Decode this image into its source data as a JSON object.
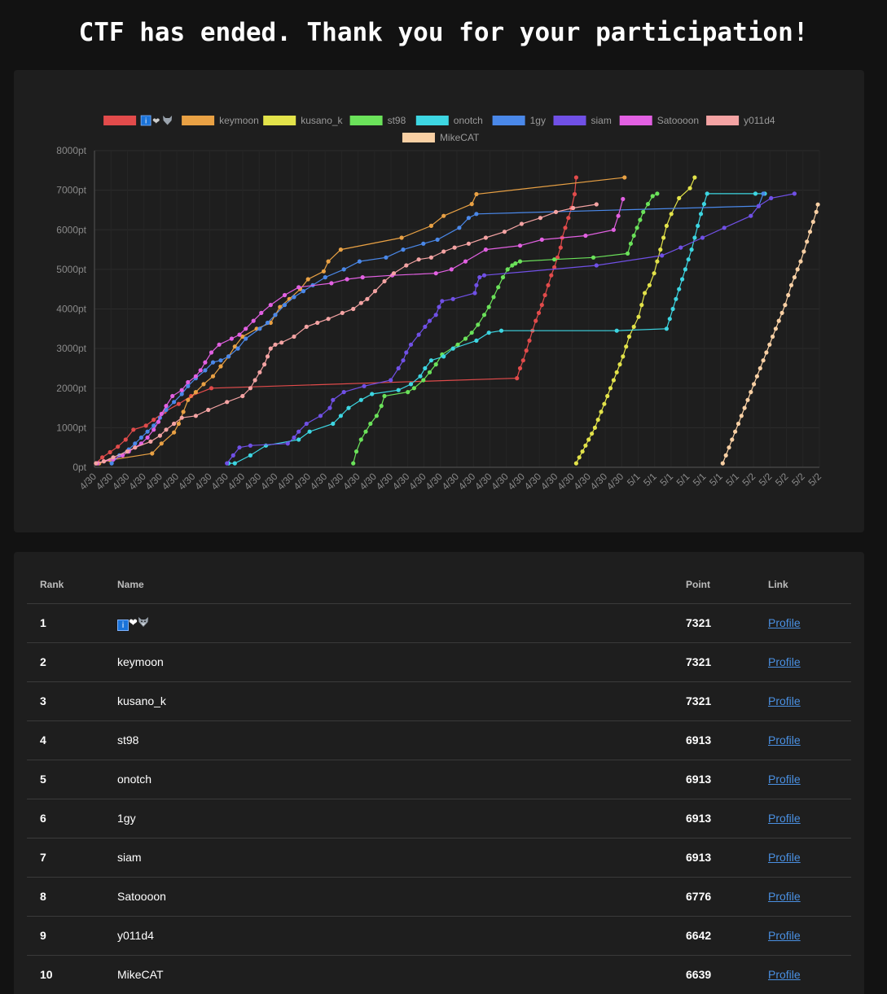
{
  "title": "CTF has ended. Thank you for your participation!",
  "colors": {
    "background": "#121212",
    "card": "#1e1e1e",
    "link": "#4a90e2"
  },
  "team_one": {
    "badge_letter": "i",
    "heart": "❤",
    "icons": [
      "info-badge-icon",
      "heart-icon",
      "wolf-icon"
    ]
  },
  "chart_data": {
    "type": "line",
    "title": "",
    "xlabel": "",
    "ylabel": "",
    "ylim": [
      0,
      8000
    ],
    "y_ticks": [
      "0pt",
      "1000pt",
      "2000pt",
      "3000pt",
      "4000pt",
      "5000pt",
      "6000pt",
      "7000pt",
      "8000pt"
    ],
    "x_ticks": [
      "4/30",
      "4/30",
      "4/30",
      "4/30",
      "4/30",
      "4/30",
      "4/30",
      "4/30",
      "4/30",
      "4/30",
      "4/30",
      "4/30",
      "4/30",
      "4/30",
      "4/30",
      "4/30",
      "4/30",
      "4/30",
      "4/30",
      "4/30",
      "4/30",
      "4/30",
      "4/30",
      "4/30",
      "4/30",
      "4/30",
      "4/30",
      "4/30",
      "4/30",
      "4/30",
      "4/30",
      "4/30",
      "4/30",
      "5/1",
      "5/1",
      "5/1",
      "5/1",
      "5/1",
      "5/1",
      "5/1",
      "5/2",
      "5/2",
      "5/2",
      "5/2",
      "5/2"
    ],
    "legend_position": "top",
    "grid": true,
    "x_domain": [
      0,
      45
    ],
    "series": [
      {
        "name": "🇮❤🐺",
        "legend_icons": true,
        "color": "#e24b4b",
        "x": [
          0.1,
          0.5,
          1.0,
          1.5,
          2.0,
          2.5,
          3.3,
          3.8,
          4.5,
          5.4,
          6.2,
          7.5,
          27.1,
          27.3,
          27.5,
          27.7,
          27.9,
          28.1,
          28.3,
          28.5,
          28.7,
          28.9,
          29.1,
          29.3,
          29.5,
          29.7,
          29.9,
          30.0,
          30.2,
          30.4,
          30.6,
          30.8,
          30.9
        ],
        "y": [
          100,
          250,
          380,
          520,
          700,
          950,
          1050,
          1200,
          1400,
          1600,
          1800,
          2000,
          2250,
          2500,
          2700,
          2950,
          3200,
          3450,
          3700,
          3900,
          4100,
          4350,
          4600,
          4850,
          5050,
          5300,
          5550,
          5800,
          6050,
          6300,
          6550,
          6900,
          7321
        ]
      },
      {
        "name": "keymoon",
        "color": "#e9a144",
        "x": [
          0.3,
          1.0,
          3.7,
          4.3,
          5.1,
          5.4,
          5.7,
          6.0,
          6.5,
          7.0,
          7.6,
          8.1,
          8.6,
          9.0,
          9.5,
          10.4,
          11.3,
          11.6,
          11.9,
          12.5,
          13.2,
          13.7,
          14.7,
          15.0,
          15.8,
          19.7,
          21.6,
          22.4,
          24.2,
          24.5,
          34.0
        ],
        "y": [
          100,
          180,
          350,
          600,
          880,
          1100,
          1400,
          1700,
          1900,
          2100,
          2300,
          2550,
          2800,
          3050,
          3300,
          3500,
          3650,
          3850,
          4050,
          4250,
          4500,
          4750,
          4950,
          5200,
          5500,
          5800,
          6100,
          6350,
          6650,
          6900,
          7321
        ]
      },
      {
        "name": "kusano_k",
        "color": "#e3e34a",
        "x": [
          30.9,
          31.1,
          31.3,
          31.5,
          31.7,
          31.9,
          32.1,
          32.3,
          32.5,
          32.7,
          32.9,
          33.1,
          33.3,
          33.5,
          33.7,
          33.9,
          34.1,
          34.3,
          34.6,
          34.9,
          35.1,
          35.3,
          35.6,
          35.9,
          36.1,
          36.3,
          36.5,
          36.7,
          37.0,
          37.5,
          38.2,
          38.5
        ],
        "y": [
          100,
          250,
          400,
          550,
          700,
          850,
          1000,
          1200,
          1400,
          1600,
          1800,
          2000,
          2200,
          2400,
          2600,
          2800,
          3050,
          3300,
          3550,
          3800,
          4100,
          4400,
          4600,
          4900,
          5200,
          5500,
          5800,
          6100,
          6400,
          6800,
          7050,
          7321
        ]
      },
      {
        "name": "st98",
        "color": "#6be25a",
        "x": [
          16.6,
          16.8,
          17.1,
          17.4,
          17.7,
          18.1,
          18.4,
          18.6,
          20.1,
          20.5,
          21.1,
          21.5,
          21.9,
          22.3,
          23.3,
          23.8,
          24.2,
          24.6,
          25.0,
          25.3,
          25.6,
          25.9,
          26.2,
          26.5,
          26.8,
          27.0,
          27.3,
          29.5,
          32.0,
          34.2,
          34.4,
          34.6,
          34.8,
          35.0,
          35.2,
          35.5,
          35.8,
          36.1
        ],
        "y": [
          100,
          400,
          700,
          900,
          1100,
          1300,
          1550,
          1800,
          1900,
          2000,
          2200,
          2400,
          2600,
          2850,
          3100,
          3250,
          3400,
          3600,
          3850,
          4050,
          4300,
          4550,
          4800,
          5000,
          5100,
          5150,
          5200,
          5250,
          5300,
          5400,
          5650,
          5850,
          6050,
          6250,
          6450,
          6650,
          6850,
          6913
        ]
      },
      {
        "name": "onotch",
        "color": "#3dd6e2",
        "x": [
          8.6,
          9.0,
          10.0,
          11.0,
          13.1,
          13.8,
          15.3,
          15.8,
          16.3,
          17.1,
          17.8,
          19.5,
          20.3,
          20.9,
          21.2,
          21.6,
          22.4,
          23.0,
          24.5,
          25.3,
          26.1,
          33.5,
          36.7,
          36.9,
          37.1,
          37.3,
          37.5,
          37.7,
          37.9,
          38.1,
          38.3,
          38.5,
          38.7,
          38.9,
          39.1,
          39.3,
          42.4,
          43.0
        ],
        "y": [
          100,
          100,
          300,
          550,
          700,
          900,
          1100,
          1300,
          1500,
          1700,
          1850,
          1950,
          2100,
          2300,
          2500,
          2700,
          2800,
          3000,
          3200,
          3400,
          3450,
          3450,
          3500,
          3750,
          4000,
          4250,
          4500,
          4750,
          5000,
          5250,
          5500,
          5800,
          6100,
          6400,
          6650,
          6913,
          6913,
          6913
        ]
      },
      {
        "name": "1gy",
        "color": "#4a88e9",
        "x": [
          1.1,
          1.6,
          2.2,
          2.6,
          3.0,
          3.4,
          3.8,
          4.2,
          4.6,
          5.1,
          5.6,
          6.0,
          6.5,
          7.1,
          7.6,
          8.1,
          8.6,
          9.2,
          9.7,
          10.6,
          11.1,
          11.6,
          12.2,
          12.8,
          13.4,
          14.0,
          14.8,
          16.0,
          17.0,
          18.7,
          19.8,
          21.1,
          22.0,
          23.4,
          24.0,
          24.5,
          42.6,
          42.9
        ],
        "y": [
          100,
          300,
          450,
          600,
          750,
          900,
          1050,
          1250,
          1450,
          1650,
          1850,
          2050,
          2250,
          2450,
          2650,
          2700,
          2800,
          3000,
          3250,
          3500,
          3650,
          3850,
          4100,
          4300,
          4450,
          4600,
          4800,
          5000,
          5200,
          5300,
          5500,
          5650,
          5750,
          6050,
          6300,
          6400,
          6600,
          6913
        ]
      },
      {
        "name": "siam",
        "color": "#7050e6",
        "x": [
          8.5,
          8.9,
          9.3,
          10.0,
          12.4,
          12.8,
          13.1,
          13.6,
          14.5,
          15.1,
          15.3,
          16.0,
          17.3,
          19.0,
          19.5,
          19.8,
          20.0,
          20.3,
          20.8,
          21.2,
          21.5,
          21.9,
          22.1,
          22.3,
          23.0,
          24.4,
          24.5,
          24.7,
          25.0,
          32.2,
          36.4,
          37.6,
          39.0,
          40.4,
          42.1,
          42.6,
          43.4,
          44.9
        ],
        "y": [
          100,
          300,
          500,
          550,
          600,
          750,
          900,
          1100,
          1300,
          1500,
          1700,
          1900,
          2050,
          2200,
          2500,
          2700,
          2900,
          3100,
          3350,
          3550,
          3700,
          3850,
          4050,
          4200,
          4250,
          4400,
          4600,
          4800,
          4850,
          5100,
          5350,
          5550,
          5800,
          6050,
          6350,
          6600,
          6800,
          6913
        ]
      },
      {
        "name": "Satoooon",
        "color": "#e260e2",
        "x": [
          0.2,
          0.6,
          1.2,
          1.8,
          2.2,
          2.6,
          3.0,
          3.4,
          3.8,
          4.1,
          4.3,
          4.6,
          5.0,
          5.6,
          6.0,
          6.5,
          6.8,
          7.1,
          7.5,
          8.0,
          8.8,
          9.3,
          9.7,
          10.2,
          10.7,
          11.3,
          12.2,
          13.1,
          15.2,
          16.2,
          17.2,
          19.1,
          21.9,
          22.9,
          23.8,
          25.1,
          27.3,
          28.7,
          31.5,
          33.3,
          33.6,
          33.9
        ],
        "y": [
          100,
          150,
          200,
          300,
          400,
          500,
          600,
          750,
          950,
          1150,
          1350,
          1550,
          1800,
          1950,
          2150,
          2300,
          2450,
          2650,
          2900,
          3100,
          3250,
          3350,
          3500,
          3700,
          3900,
          4100,
          4350,
          4550,
          4650,
          4750,
          4800,
          4850,
          4900,
          5000,
          5200,
          5500,
          5600,
          5750,
          5850,
          6000,
          6350,
          6776
        ]
      },
      {
        "name": "y011d4",
        "color": "#f4a3a3",
        "x": [
          0.1,
          0.6,
          1.2,
          2.1,
          2.6,
          3.6,
          4.2,
          4.6,
          5.1,
          5.6,
          6.5,
          7.3,
          8.5,
          9.5,
          10.0,
          10.3,
          10.6,
          10.9,
          11.1,
          11.3,
          11.6,
          12.0,
          12.8,
          13.6,
          14.3,
          15.0,
          15.9,
          16.6,
          17.1,
          17.5,
          18.0,
          18.6,
          19.2,
          20.0,
          20.8,
          21.6,
          22.4,
          23.1,
          24.0,
          25.1,
          26.3,
          27.4,
          28.6,
          29.6,
          30.7,
          32.2
        ],
        "y": [
          100,
          150,
          250,
          400,
          500,
          650,
          800,
          950,
          1100,
          1250,
          1300,
          1450,
          1650,
          1800,
          2000,
          2200,
          2400,
          2600,
          2800,
          3000,
          3100,
          3150,
          3300,
          3550,
          3650,
          3750,
          3900,
          4000,
          4150,
          4250,
          4450,
          4700,
          4900,
          5100,
          5250,
          5300,
          5450,
          5550,
          5650,
          5800,
          5950,
          6150,
          6300,
          6450,
          6550,
          6642
        ]
      },
      {
        "name": "MikeCAT",
        "color": "#f9d0a4",
        "x": [
          40.3,
          40.5,
          40.7,
          40.9,
          41.1,
          41.3,
          41.5,
          41.7,
          41.9,
          42.1,
          42.3,
          42.5,
          42.7,
          42.9,
          43.1,
          43.3,
          43.5,
          43.7,
          43.9,
          44.1,
          44.3,
          44.5,
          44.7,
          44.9,
          45.1,
          45.3,
          45.5,
          45.7,
          45.9,
          46.1,
          46.3,
          46.4
        ],
        "y": [
          100,
          300,
          500,
          700,
          900,
          1100,
          1300,
          1500,
          1700,
          1900,
          2100,
          2300,
          2500,
          2700,
          2900,
          3100,
          3300,
          3500,
          3700,
          3900,
          4100,
          4350,
          4600,
          4800,
          5000,
          5200,
          5450,
          5700,
          5950,
          6200,
          6450,
          6639
        ]
      }
    ]
  },
  "table": {
    "headers": {
      "rank": "Rank",
      "name": "Name",
      "point": "Point",
      "link": "Link"
    },
    "rows": [
      {
        "rank": "1",
        "name": "",
        "special": true,
        "point": "7321",
        "link": "Profile"
      },
      {
        "rank": "2",
        "name": "keymoon",
        "point": "7321",
        "link": "Profile"
      },
      {
        "rank": "3",
        "name": "kusano_k",
        "point": "7321",
        "link": "Profile"
      },
      {
        "rank": "4",
        "name": "st98",
        "point": "6913",
        "link": "Profile"
      },
      {
        "rank": "5",
        "name": "onotch",
        "point": "6913",
        "link": "Profile"
      },
      {
        "rank": "6",
        "name": "1gy",
        "point": "6913",
        "link": "Profile"
      },
      {
        "rank": "7",
        "name": "siam",
        "point": "6913",
        "link": "Profile"
      },
      {
        "rank": "8",
        "name": "Satoooon",
        "point": "6776",
        "link": "Profile"
      },
      {
        "rank": "9",
        "name": "y011d4",
        "point": "6642",
        "link": "Profile"
      },
      {
        "rank": "10",
        "name": "MikeCAT",
        "point": "6639",
        "link": "Profile"
      }
    ]
  }
}
